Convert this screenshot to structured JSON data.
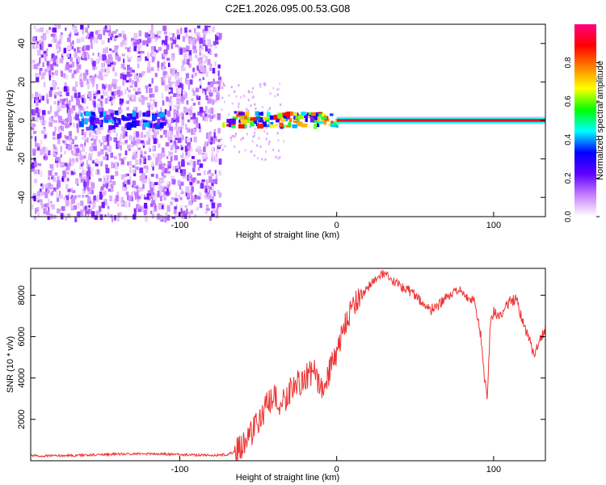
{
  "title": "C2E1.2026.095.00.53.G08",
  "chart_data": [
    {
      "type": "heatmap",
      "xlabel": "Height of straight line (km)",
      "ylabel": "Frequency (Hz)",
      "xlim": [
        -195,
        133
      ],
      "ylim": [
        -50,
        50
      ],
      "xticks": [
        -100,
        0,
        100
      ],
      "xtick_labels": [
        "-100",
        "0",
        "100"
      ],
      "yticks": [
        -40,
        -20,
        0,
        20,
        40
      ],
      "ytick_labels": [
        "-40",
        "-20",
        "0",
        "20",
        "40"
      ],
      "grid": false,
      "colorbar": {
        "label": "Normalized spectral amplitude",
        "range": [
          0,
          1
        ],
        "ticks": [
          0.0,
          0.2,
          0.4,
          0.6,
          0.8
        ],
        "tick_labels": [
          "0.0",
          "0.2",
          "0.4",
          "0.6",
          "0.8"
        ],
        "colors": [
          "#ffffff",
          "#c880ff",
          "#6000ff",
          "#0000ff",
          "#00ffff",
          "#00ff00",
          "#ffff00",
          "#ff8000",
          "#ff0000",
          "#ff0080"
        ]
      }
    },
    {
      "type": "line",
      "xlabel": "Height of straight line (km)",
      "ylabel": "SNR (10 * v/v)",
      "xlim": [
        -195,
        133
      ],
      "ylim": [
        0,
        9300
      ],
      "xticks": [
        -100,
        0,
        100
      ],
      "xtick_labels": [
        "-100",
        "0",
        "100"
      ],
      "yticks": [
        2000,
        4000,
        6000,
        8000
      ],
      "ytick_labels": [
        "2000",
        "4000",
        "6000",
        "8000"
      ],
      "grid": false,
      "series": [
        {
          "name": "SNR",
          "color": "#ee3333",
          "x": [
            -195,
            -180,
            -165,
            -150,
            -135,
            -120,
            -105,
            -90,
            -80,
            -70,
            -65,
            -60,
            -55,
            -50,
            -45,
            -40,
            -35,
            -30,
            -25,
            -20,
            -15,
            -10,
            -5,
            0,
            5,
            10,
            15,
            20,
            25,
            30,
            35,
            40,
            45,
            50,
            55,
            60,
            65,
            70,
            75,
            80,
            85,
            88,
            92,
            94,
            96,
            98,
            100,
            105,
            110,
            115,
            118,
            120,
            123,
            126,
            129,
            133
          ],
          "y": [
            250,
            240,
            260,
            300,
            330,
            340,
            310,
            280,
            260,
            300,
            450,
            800,
            1300,
            1900,
            2600,
            3000,
            2700,
            3400,
            3700,
            4000,
            4300,
            3600,
            4200,
            5200,
            6500,
            7500,
            8000,
            8400,
            8800,
            9000,
            8700,
            8500,
            8300,
            8000,
            7600,
            7300,
            7500,
            7900,
            8100,
            8200,
            7800,
            7700,
            6000,
            4000,
            3100,
            6800,
            7200,
            7000,
            7700,
            7800,
            6800,
            6400,
            5800,
            4900,
            5900,
            6300
          ]
        }
      ]
    }
  ]
}
